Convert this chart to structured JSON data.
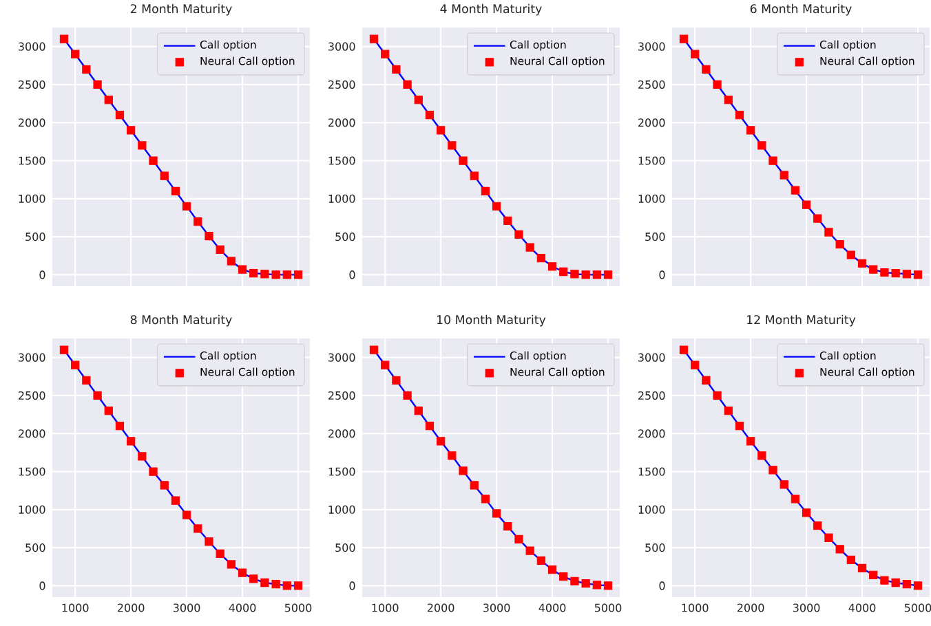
{
  "chart_data": [
    {
      "type": "line",
      "title": "2 Month Maturity",
      "x": [
        800,
        1000,
        1200,
        1400,
        1600,
        1800,
        2000,
        2200,
        2400,
        2600,
        2800,
        3000,
        3200,
        3400,
        3600,
        3800,
        4000,
        4200,
        4400,
        4600,
        4800,
        5000
      ],
      "xlim": [
        590,
        5210
      ],
      "ylim": [
        -150,
        3250
      ],
      "xticks": [
        1000,
        2000,
        3000,
        4000,
        5000
      ],
      "yticks": [
        0,
        500,
        1000,
        1500,
        2000,
        2500,
        3000
      ],
      "grid": true,
      "legend": "top right",
      "tick_labels": "y",
      "series": [
        {
          "name": "Call option",
          "color": "#0000ff",
          "values": [
            3100,
            2900,
            2700,
            2500,
            2300,
            2100,
            1900,
            1700,
            1500,
            1300,
            1100,
            900,
            700,
            510,
            330,
            180,
            70,
            20,
            10,
            0,
            0,
            0
          ]
        },
        {
          "name": "Neural Call option",
          "type": "scatter",
          "marker": "square",
          "color": "#ff0000",
          "values": [
            3100,
            2900,
            2700,
            2500,
            2300,
            2100,
            1900,
            1700,
            1500,
            1300,
            1100,
            900,
            700,
            510,
            330,
            180,
            70,
            20,
            10,
            0,
            0,
            0
          ]
        }
      ]
    },
    {
      "type": "line",
      "title": "4 Month Maturity",
      "x": [
        800,
        1000,
        1200,
        1400,
        1600,
        1800,
        2000,
        2200,
        2400,
        2600,
        2800,
        3000,
        3200,
        3400,
        3600,
        3800,
        4000,
        4200,
        4400,
        4600,
        4800,
        5000
      ],
      "xlim": [
        590,
        5210
      ],
      "ylim": [
        -150,
        3250
      ],
      "xticks": [
        1000,
        2000,
        3000,
        4000,
        5000
      ],
      "yticks": [
        0,
        500,
        1000,
        1500,
        2000,
        2500,
        3000
      ],
      "grid": true,
      "legend": "top right",
      "tick_labels": "y",
      "series": [
        {
          "name": "Call option",
          "color": "#0000ff",
          "values": [
            3100,
            2900,
            2700,
            2500,
            2300,
            2100,
            1900,
            1700,
            1500,
            1300,
            1100,
            900,
            710,
            530,
            360,
            220,
            110,
            40,
            10,
            0,
            0,
            0
          ]
        },
        {
          "name": "Neural Call option",
          "type": "scatter",
          "marker": "square",
          "color": "#ff0000",
          "values": [
            3100,
            2900,
            2700,
            2500,
            2300,
            2100,
            1900,
            1700,
            1500,
            1300,
            1100,
            900,
            710,
            530,
            360,
            220,
            110,
            40,
            10,
            0,
            0,
            0
          ]
        }
      ]
    },
    {
      "type": "line",
      "title": "6 Month Maturity",
      "x": [
        800,
        1000,
        1200,
        1400,
        1600,
        1800,
        2000,
        2200,
        2400,
        2600,
        2800,
        3000,
        3200,
        3400,
        3600,
        3800,
        4000,
        4200,
        4400,
        4600,
        4800,
        5000
      ],
      "xlim": [
        590,
        5210
      ],
      "ylim": [
        -150,
        3250
      ],
      "xticks": [
        1000,
        2000,
        3000,
        4000,
        5000
      ],
      "yticks": [
        0,
        500,
        1000,
        1500,
        2000,
        2500,
        3000
      ],
      "grid": true,
      "legend": "top right",
      "tick_labels": "y",
      "series": [
        {
          "name": "Call option",
          "color": "#0000ff",
          "values": [
            3100,
            2900,
            2700,
            2500,
            2300,
            2100,
            1900,
            1700,
            1500,
            1310,
            1110,
            920,
            740,
            560,
            400,
            260,
            150,
            70,
            30,
            20,
            10,
            0
          ]
        },
        {
          "name": "Neural Call option",
          "type": "scatter",
          "marker": "square",
          "color": "#ff0000",
          "values": [
            3100,
            2900,
            2700,
            2500,
            2300,
            2100,
            1900,
            1700,
            1500,
            1310,
            1110,
            920,
            740,
            560,
            400,
            260,
            150,
            70,
            30,
            20,
            10,
            0
          ]
        }
      ]
    },
    {
      "type": "line",
      "title": "8 Month Maturity",
      "x": [
        800,
        1000,
        1200,
        1400,
        1600,
        1800,
        2000,
        2200,
        2400,
        2600,
        2800,
        3000,
        3200,
        3400,
        3600,
        3800,
        4000,
        4200,
        4400,
        4600,
        4800,
        5000
      ],
      "xlim": [
        590,
        5210
      ],
      "ylim": [
        -150,
        3250
      ],
      "xticks": [
        1000,
        2000,
        3000,
        4000,
        5000
      ],
      "yticks": [
        0,
        500,
        1000,
        1500,
        2000,
        2500,
        3000
      ],
      "grid": true,
      "legend": "top right",
      "series": [
        {
          "name": "Call option",
          "color": "#0000ff",
          "values": [
            3100,
            2900,
            2700,
            2500,
            2300,
            2100,
            1900,
            1700,
            1500,
            1320,
            1120,
            930,
            750,
            580,
            420,
            280,
            170,
            90,
            40,
            20,
            0,
            0
          ]
        },
        {
          "name": "Neural Call option",
          "type": "scatter",
          "marker": "square",
          "color": "#ff0000",
          "values": [
            3100,
            2900,
            2700,
            2500,
            2300,
            2100,
            1900,
            1700,
            1500,
            1320,
            1120,
            930,
            750,
            580,
            420,
            280,
            170,
            90,
            40,
            20,
            0,
            0
          ]
        }
      ]
    },
    {
      "type": "line",
      "title": "10 Month Maturity",
      "x": [
        800,
        1000,
        1200,
        1400,
        1600,
        1800,
        2000,
        2200,
        2400,
        2600,
        2800,
        3000,
        3200,
        3400,
        3600,
        3800,
        4000,
        4200,
        4400,
        4600,
        4800,
        5000
      ],
      "xlim": [
        590,
        5210
      ],
      "ylim": [
        -150,
        3250
      ],
      "xticks": [
        1000,
        2000,
        3000,
        4000,
        5000
      ],
      "yticks": [
        0,
        500,
        1000,
        1500,
        2000,
        2500,
        3000
      ],
      "grid": true,
      "legend": "top right",
      "series": [
        {
          "name": "Call option",
          "color": "#0000ff",
          "values": [
            3100,
            2900,
            2700,
            2500,
            2300,
            2100,
            1900,
            1710,
            1510,
            1320,
            1140,
            950,
            780,
            610,
            460,
            330,
            210,
            120,
            60,
            30,
            10,
            0
          ]
        },
        {
          "name": "Neural Call option",
          "type": "scatter",
          "marker": "square",
          "color": "#ff0000",
          "values": [
            3100,
            2900,
            2700,
            2500,
            2300,
            2100,
            1900,
            1710,
            1510,
            1320,
            1140,
            950,
            780,
            610,
            460,
            330,
            210,
            120,
            60,
            30,
            10,
            0
          ]
        }
      ]
    },
    {
      "type": "line",
      "title": "12 Month Maturity",
      "x": [
        800,
        1000,
        1200,
        1400,
        1600,
        1800,
        2000,
        2200,
        2400,
        2600,
        2800,
        3000,
        3200,
        3400,
        3600,
        3800,
        4000,
        4200,
        4400,
        4600,
        4800,
        5000
      ],
      "xlim": [
        590,
        5210
      ],
      "ylim": [
        -150,
        3250
      ],
      "xticks": [
        1000,
        2000,
        3000,
        4000,
        5000
      ],
      "yticks": [
        0,
        500,
        1000,
        1500,
        2000,
        2500,
        3000
      ],
      "grid": true,
      "legend": "top right",
      "series": [
        {
          "name": "Call option",
          "color": "#0000ff",
          "values": [
            3100,
            2900,
            2700,
            2500,
            2300,
            2100,
            1900,
            1710,
            1520,
            1330,
            1140,
            960,
            790,
            630,
            480,
            340,
            230,
            140,
            70,
            40,
            20,
            0
          ]
        },
        {
          "name": "Neural Call option",
          "type": "scatter",
          "marker": "square",
          "color": "#ff0000",
          "values": [
            3100,
            2900,
            2700,
            2500,
            2300,
            2100,
            1900,
            1710,
            1520,
            1330,
            1140,
            960,
            790,
            630,
            480,
            340,
            230,
            140,
            70,
            40,
            20,
            0
          ]
        }
      ]
    }
  ]
}
